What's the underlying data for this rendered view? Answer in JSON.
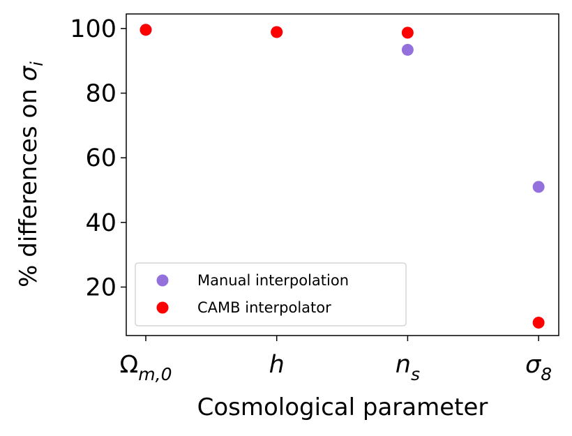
{
  "chart_data": {
    "type": "scatter",
    "title": "",
    "xlabel": "Cosmological parameter",
    "ylabel": "% differences on σ_i",
    "categories": [
      "Ω_{m,0}",
      "h",
      "n_s",
      "σ_8"
    ],
    "ylim": [
      5,
      104.5
    ],
    "yticks": [
      20,
      40,
      60,
      80,
      100
    ],
    "grid": false,
    "legend_position": "lower-left",
    "series": [
      {
        "name": "Manual interpolation",
        "color": "#9370DB",
        "values": [
          99.6,
          98.9,
          93.4,
          51.0
        ]
      },
      {
        "name": "CAMB interpolator",
        "color": "#FF0000",
        "values": [
          99.6,
          98.9,
          98.7,
          9.0
        ]
      }
    ]
  }
}
